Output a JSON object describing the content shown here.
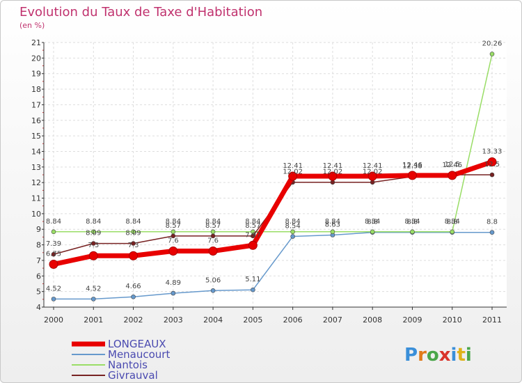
{
  "title": "Evolution du Taux de Taxe d'Habitation",
  "subtitle": "(en %)",
  "logo": {
    "text": "Proxiti"
  },
  "chart_data": {
    "type": "line",
    "title": "Evolution du Taux de Taxe d'Habitation",
    "ylabel": "(en %)",
    "xlabel": "",
    "ylim": [
      4,
      21
    ],
    "categories": [
      "2000",
      "2001",
      "2002",
      "2003",
      "2004",
      "2005",
      "2006",
      "2007",
      "2008",
      "2009",
      "2010",
      "2011"
    ],
    "yticks": [
      4,
      5,
      6,
      7,
      8,
      9,
      10,
      11,
      12,
      13,
      14,
      15,
      16,
      17,
      18,
      19,
      20,
      21
    ],
    "grid": true,
    "legend_position": "bottom-left",
    "series": [
      {
        "name": "LONGEAUX",
        "color": "#e80000",
        "values": [
          6.75,
          7.3,
          7.3,
          7.6,
          7.6,
          7.97,
          12.41,
          12.41,
          12.41,
          12.46,
          12.46,
          13.33
        ],
        "labels": [
          "6.75",
          "7.3",
          "7.3",
          "7.6",
          "7.6",
          "7.97",
          "12.41",
          "12.41",
          "12.41",
          "12.46",
          "12.46",
          "13.33"
        ]
      },
      {
        "name": "Menaucourt",
        "color": "#6699cc",
        "values": [
          4.52,
          4.52,
          4.66,
          4.89,
          5.06,
          5.11,
          8.54,
          8.63,
          8.8,
          8.8,
          8.8,
          8.8
        ],
        "labels": [
          "4.52",
          "4.52",
          "4.66",
          "4.89",
          "5.06",
          "5.11",
          "8.54",
          "8.63",
          "8.8",
          "8.8",
          "8.8",
          "8.8"
        ]
      },
      {
        "name": "Nantois",
        "color": "#99dd66",
        "values": [
          8.84,
          8.84,
          8.84,
          8.84,
          8.84,
          8.84,
          8.84,
          8.84,
          8.84,
          8.84,
          8.84,
          20.26
        ],
        "labels": [
          "8.84",
          "8.84",
          "8.84",
          "8.84",
          "8.84",
          "8.84",
          "8.84",
          "8.84",
          "8.84",
          "8.84",
          "8.84",
          "20.26"
        ]
      },
      {
        "name": "Givrauval",
        "color": "#772222",
        "values": [
          7.39,
          8.09,
          8.09,
          8.57,
          8.57,
          8.57,
          12.02,
          12.02,
          12.02,
          12.38,
          12.5,
          12.5
        ],
        "labels": [
          "7.39",
          "8.09",
          "8.09",
          "8.57",
          "8.57",
          "8.57",
          "12.02",
          "12.02",
          "12.02",
          "12.38",
          "12.5",
          "12.5"
        ]
      }
    ]
  }
}
